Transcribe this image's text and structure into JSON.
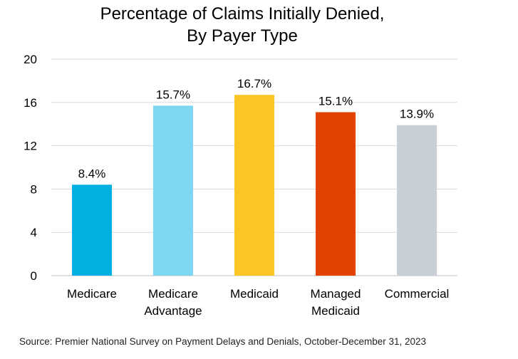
{
  "chart_data": {
    "type": "bar",
    "title_lines": [
      "Percentage of Claims Initially Denied,",
      "By Payer Type"
    ],
    "categories": [
      [
        "Medicare"
      ],
      [
        "Medicare",
        "Advantage"
      ],
      [
        "Medicaid"
      ],
      [
        "Managed",
        "Medicaid"
      ],
      [
        "Commercial"
      ]
    ],
    "values": [
      8.4,
      15.7,
      16.7,
      15.1,
      13.9
    ],
    "data_labels": [
      "8.4%",
      "15.7%",
      "16.7%",
      "15.1%",
      "13.9%"
    ],
    "bar_colors": [
      "#00b0e0",
      "#7fd6f0",
      "#fdc526",
      "#e04400",
      "#c8cfd6"
    ],
    "ylim": [
      0,
      20
    ],
    "yticks": [
      0,
      4,
      8,
      12,
      16,
      20
    ],
    "grid": true,
    "legend": "none"
  },
  "source": "Source: Premier National Survey on Payment Delays and Denials, October-December 31, 2023"
}
